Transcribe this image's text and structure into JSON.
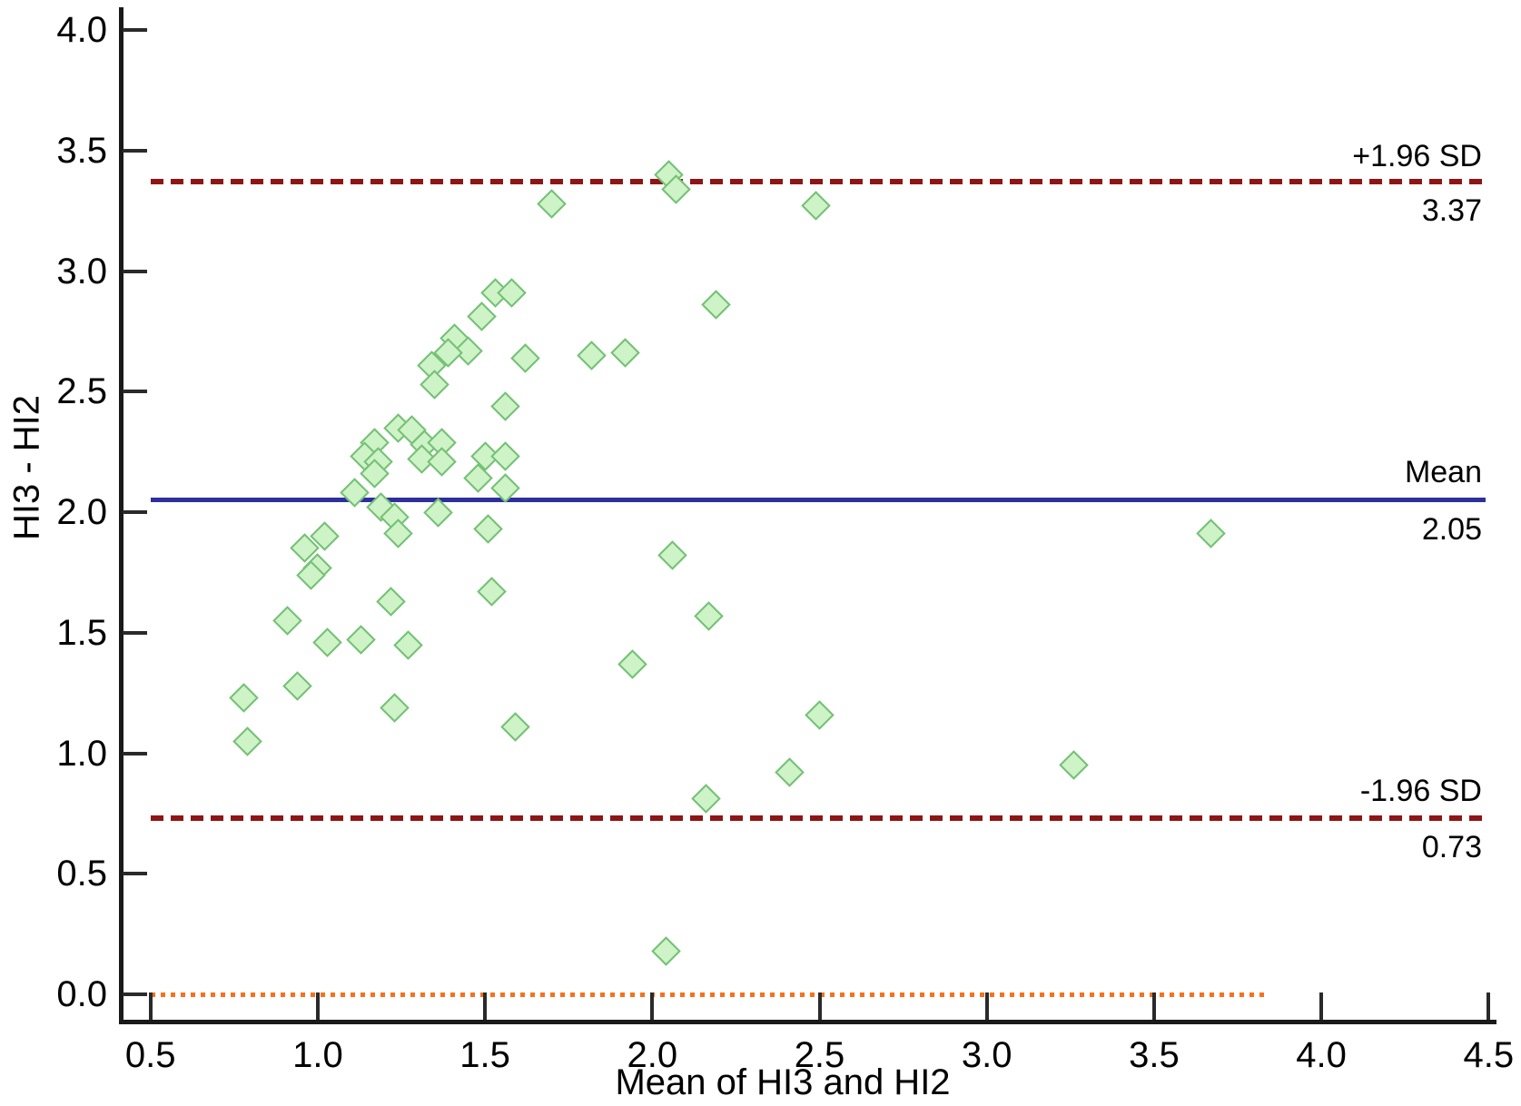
{
  "figure": {
    "background": "#ffffff",
    "axis_color": "#1a1a1a",
    "text_color": "#000000"
  },
  "chart_data": {
    "type": "scatter",
    "title": "",
    "xlabel": "Mean of HI3 and HI2",
    "ylabel": "HI3 - HI2",
    "xlim": [
      0.5,
      4.5
    ],
    "ylim": [
      0.0,
      4.0
    ],
    "grid": false,
    "legend": "none",
    "x_ticks": [
      "0.5",
      "1.0",
      "1.5",
      "2.0",
      "2.5",
      "3.0",
      "3.5",
      "4.0",
      "4.5"
    ],
    "y_ticks": [
      "0.0",
      "0.5",
      "1.0",
      "1.5",
      "2.0",
      "2.5",
      "3.0",
      "3.5",
      "4.0"
    ],
    "marker": {
      "shape": "diamond",
      "fill": "#cdf3c6",
      "stroke": "#74c076"
    },
    "reference_lines": [
      {
        "name": "upper-loa",
        "label": "+1.96 SD",
        "value_label": "3.37",
        "y": 3.37,
        "style": "dashed",
        "color": "#8e1515",
        "x_start": 0.5,
        "x_end": 4.49
      },
      {
        "name": "mean",
        "label": "Mean",
        "value_label": "2.05",
        "y": 2.05,
        "style": "solid",
        "color": "#2d2f9e",
        "x_start": 0.5,
        "x_end": 4.49
      },
      {
        "name": "lower-loa",
        "label": "-1.96 SD",
        "value_label": "0.73",
        "y": 0.73,
        "style": "dashed",
        "color": "#8e1515",
        "x_start": 0.5,
        "x_end": 4.49
      },
      {
        "name": "zero-line",
        "label": "",
        "value_label": "",
        "y": 0.0,
        "style": "dotted",
        "color": "#f8701a",
        "x_start": 0.5,
        "x_end": 3.84
      }
    ],
    "points": [
      [
        2.05,
        3.4
      ],
      [
        2.07,
        3.34
      ],
      [
        1.7,
        3.28
      ],
      [
        2.49,
        3.27
      ],
      [
        1.53,
        2.91
      ],
      [
        1.58,
        2.91
      ],
      [
        2.19,
        2.86
      ],
      [
        1.49,
        2.81
      ],
      [
        1.41,
        2.72
      ],
      [
        1.45,
        2.67
      ],
      [
        1.39,
        2.66
      ],
      [
        1.62,
        2.64
      ],
      [
        1.82,
        2.65
      ],
      [
        1.92,
        2.66
      ],
      [
        1.34,
        2.61
      ],
      [
        1.35,
        2.53
      ],
      [
        1.56,
        2.44
      ],
      [
        1.24,
        2.35
      ],
      [
        1.28,
        2.34
      ],
      [
        1.17,
        2.29
      ],
      [
        1.32,
        2.28
      ],
      [
        1.37,
        2.29
      ],
      [
        1.14,
        2.23
      ],
      [
        1.18,
        2.21
      ],
      [
        1.31,
        2.22
      ],
      [
        1.37,
        2.21
      ],
      [
        1.5,
        2.23
      ],
      [
        1.56,
        2.23
      ],
      [
        1.17,
        2.16
      ],
      [
        1.48,
        2.14
      ],
      [
        1.56,
        2.1
      ],
      [
        1.11,
        2.08
      ],
      [
        1.19,
        2.02
      ],
      [
        1.23,
        1.98
      ],
      [
        1.36,
        2.0
      ],
      [
        1.24,
        1.91
      ],
      [
        1.51,
        1.93
      ],
      [
        1.02,
        1.9
      ],
      [
        0.96,
        1.85
      ],
      [
        1.0,
        1.77
      ],
      [
        0.98,
        1.74
      ],
      [
        3.67,
        1.91
      ],
      [
        2.06,
        1.82
      ],
      [
        1.52,
        1.67
      ],
      [
        1.22,
        1.63
      ],
      [
        2.17,
        1.57
      ],
      [
        0.91,
        1.55
      ],
      [
        1.03,
        1.46
      ],
      [
        1.13,
        1.47
      ],
      [
        1.27,
        1.45
      ],
      [
        1.94,
        1.37
      ],
      [
        0.94,
        1.28
      ],
      [
        0.78,
        1.23
      ],
      [
        1.23,
        1.19
      ],
      [
        1.59,
        1.11
      ],
      [
        2.5,
        1.16
      ],
      [
        0.79,
        1.05
      ],
      [
        3.26,
        0.95
      ],
      [
        2.41,
        0.92
      ],
      [
        2.16,
        0.81
      ],
      [
        2.04,
        0.18
      ]
    ]
  }
}
